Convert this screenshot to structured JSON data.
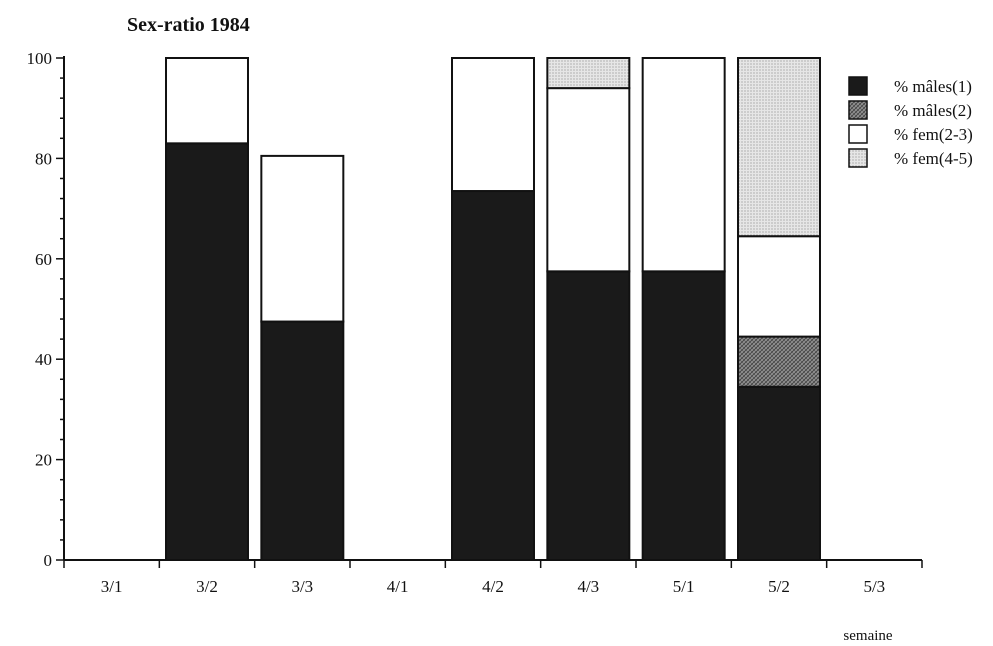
{
  "chart_data": {
    "type": "bar",
    "stacked": true,
    "title": "Sex-ratio 1984",
    "xlabel": "semaine",
    "ylabel": "",
    "ylim": [
      0,
      100
    ],
    "yticks": [
      0,
      20,
      40,
      60,
      80,
      100
    ],
    "grid": false,
    "legend_position": "right",
    "categories": [
      "3/1",
      "3/2",
      "3/3",
      "4/1",
      "4/2",
      "4/3",
      "5/1",
      "5/2",
      "5/3"
    ],
    "series": [
      {
        "name": "% mâles(1)",
        "fill": "solid",
        "color": "#1a1a1a",
        "values": [
          0,
          83,
          47.5,
          0,
          73.5,
          57.5,
          57.5,
          34.5,
          0
        ]
      },
      {
        "name": "% mâles(2)",
        "fill": "hatch",
        "color": "#777777",
        "values": [
          0,
          0,
          0,
          0,
          0,
          0,
          0,
          10,
          0
        ]
      },
      {
        "name": "% fem(2-3)",
        "fill": "white",
        "color": "#ffffff",
        "values": [
          0,
          17,
          33,
          0,
          26.5,
          36.5,
          42.5,
          20,
          0
        ]
      },
      {
        "name": "% fem(4-5)",
        "fill": "dotted",
        "color": "#cfcfcf",
        "values": [
          0,
          0,
          0,
          0,
          0,
          6,
          0,
          35.5,
          0
        ]
      }
    ]
  }
}
